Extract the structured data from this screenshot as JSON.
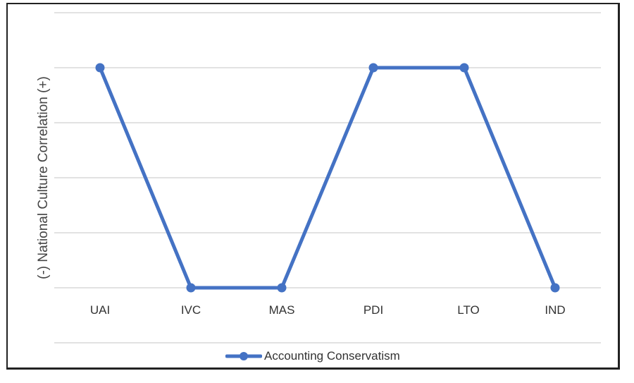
{
  "chart_data": {
    "type": "line",
    "title": "",
    "xlabel": "",
    "ylabel": "(-) National Culture Correlation (+)",
    "categories": [
      "UAI",
      "IVC",
      "MAS",
      "PDI",
      "LTO",
      "IND"
    ],
    "series": [
      {
        "name": "Accounting Conservatism",
        "color": "#4472C4",
        "values": [
          1,
          -1,
          -1,
          1,
          1,
          -1
        ]
      }
    ],
    "ylim": [
      -1.5,
      1.5
    ],
    "y_gridlines": [
      1.5,
      1,
      0.5,
      0,
      -0.5,
      -1,
      -1.5
    ],
    "y_tick_labels_shown": false,
    "grid": true,
    "legend_position": "bottom"
  },
  "axis": {
    "ylabel": "(-) National Culture Correlation (+)"
  },
  "categories": [
    "UAI",
    "IVC",
    "MAS",
    "PDI",
    "LTO",
    "IND"
  ],
  "legend": {
    "label": "Accounting Conservatism"
  }
}
